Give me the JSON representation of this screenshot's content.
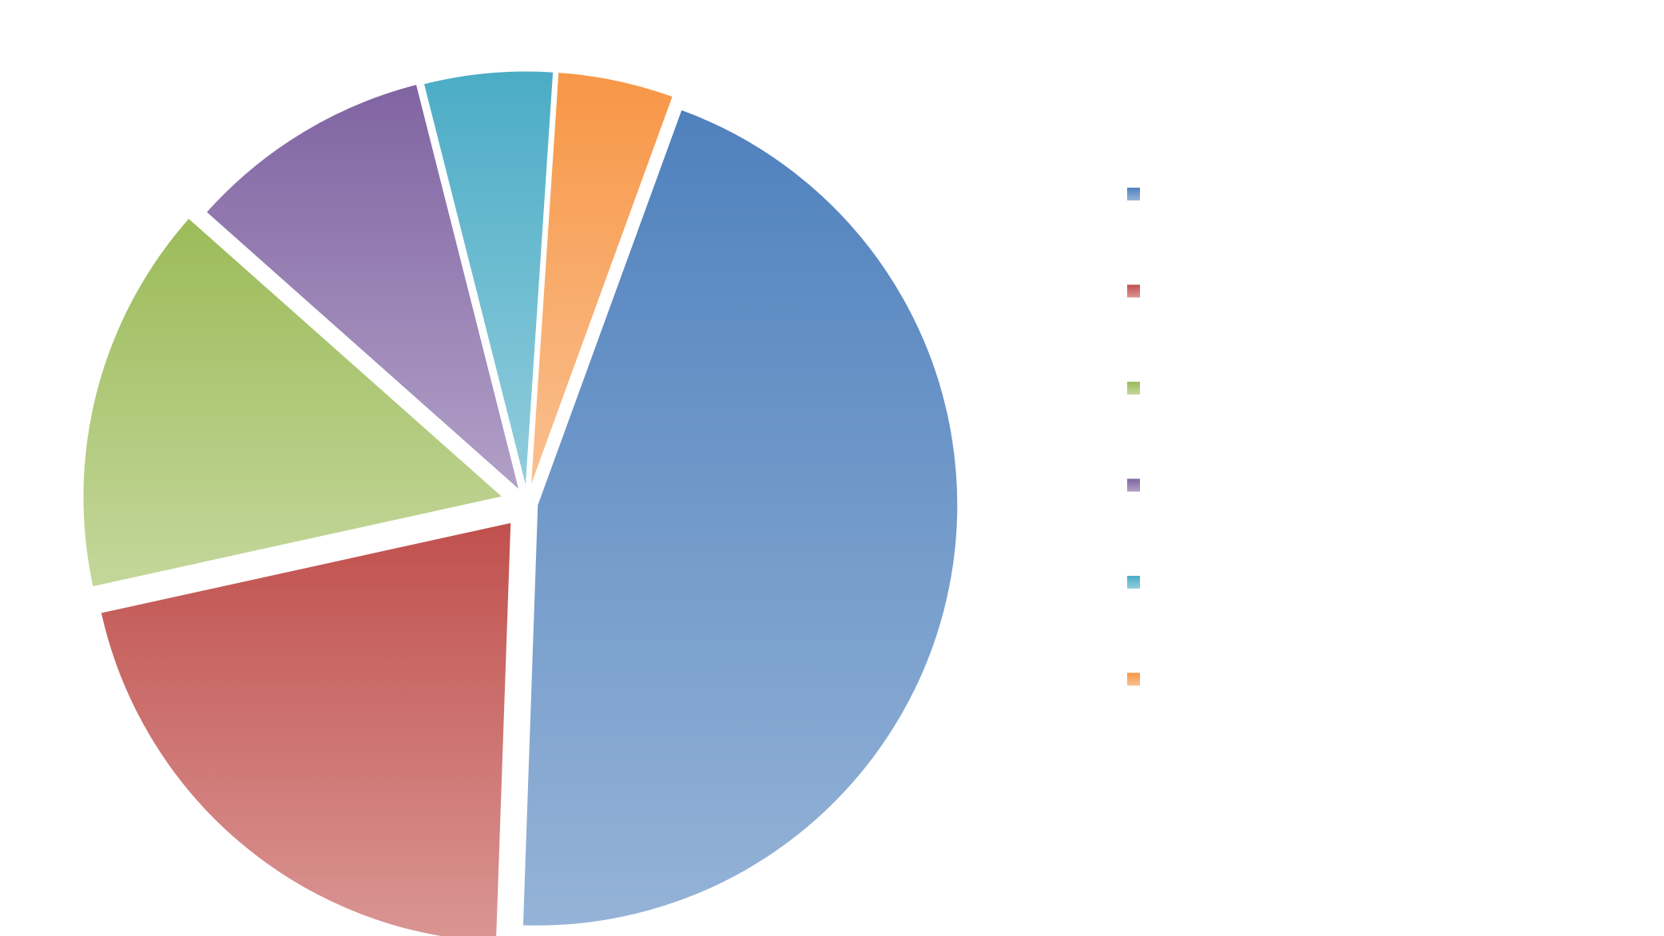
{
  "chart_data": {
    "type": "pie",
    "title": "",
    "exploded": true,
    "legend_position": "right",
    "start_angle_deg": 20,
    "direction": "clockwise",
    "categories": [
      "",
      "",
      "",
      "",
      "",
      ""
    ],
    "values": [
      45.0,
      21.0,
      15.0,
      9.5,
      5.0,
      4.5
    ],
    "colors": [
      {
        "top": "#4f81bd",
        "bottom": "#95b3d7"
      },
      {
        "top": "#c0504d",
        "bottom": "#da9694"
      },
      {
        "top": "#9bbb59",
        "bottom": "#c4d79b"
      },
      {
        "top": "#8064a2",
        "bottom": "#b1a0c7"
      },
      {
        "top": "#4bacc6",
        "bottom": "#92cddc"
      },
      {
        "top": "#f79646",
        "bottom": "#fac090"
      }
    ]
  }
}
